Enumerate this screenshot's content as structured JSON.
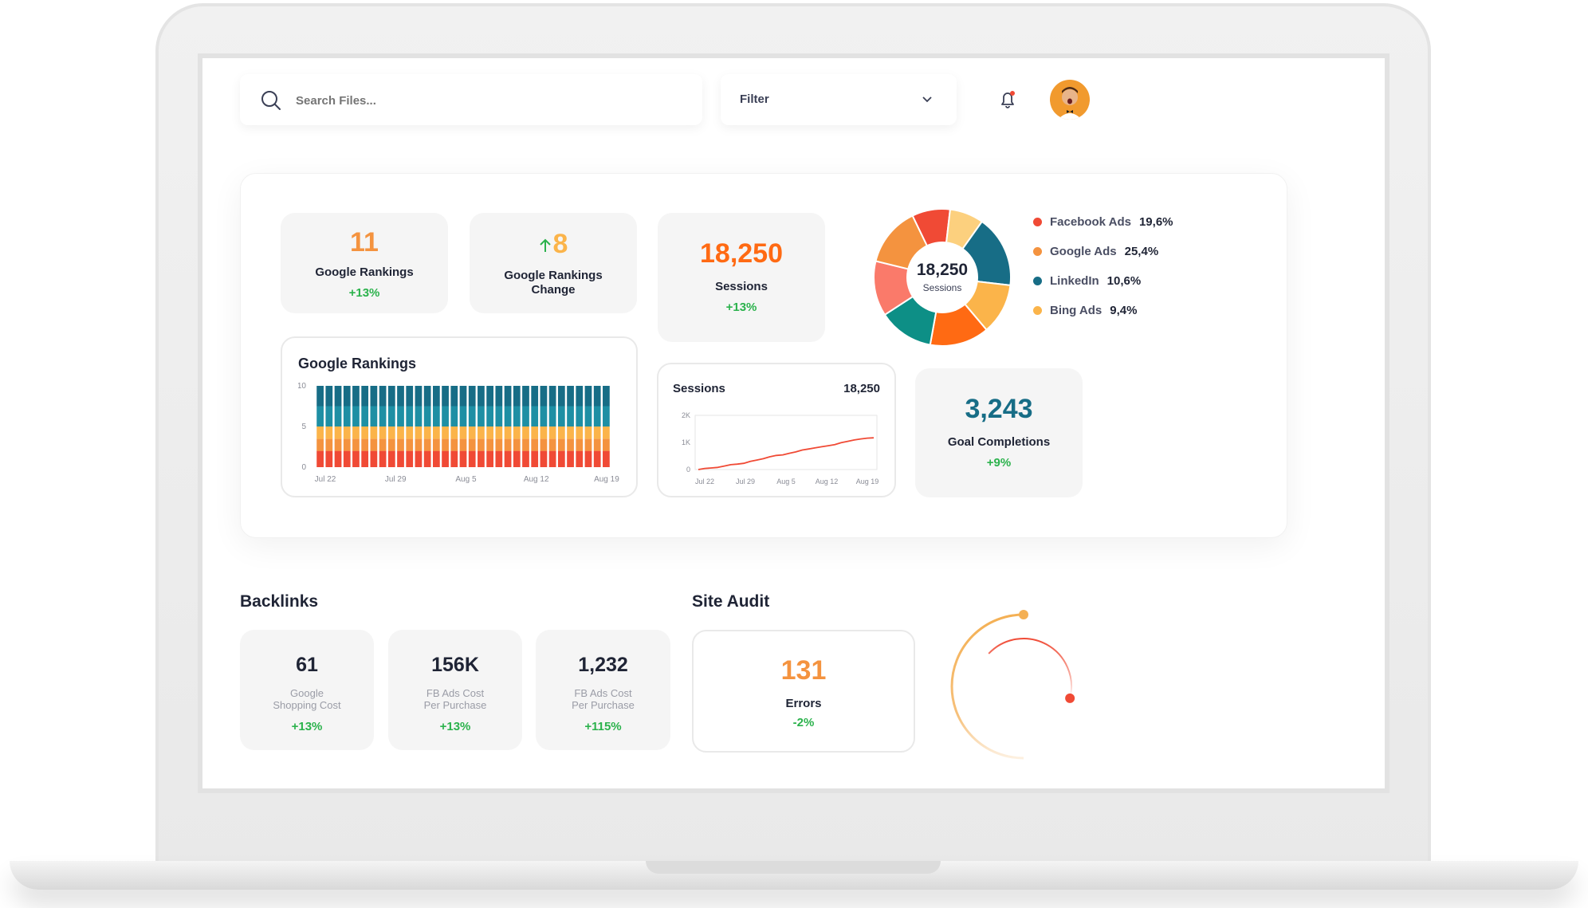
{
  "search": {
    "placeholder": "Search Files..."
  },
  "filter": {
    "label": "Filter"
  },
  "stats": {
    "rankings": {
      "value": "11",
      "label": "Google Rankings",
      "delta": "+13%"
    },
    "rankings_change": {
      "value": "8",
      "label_line1": "Google Rankings",
      "label_line2": "Change"
    },
    "sessions": {
      "value": "18,250",
      "label": "Sessions",
      "delta": "+13%"
    },
    "goal": {
      "value": "3,243",
      "label": "Goal Completions",
      "delta": "+9%"
    }
  },
  "donut": {
    "center_value": "18,250",
    "center_label": "Sessions",
    "legend": [
      {
        "name": "Facebook Ads",
        "value": "19,6%",
        "color": "#f04a35"
      },
      {
        "name": "Google Ads",
        "value": "25,4%",
        "color": "#f4933f"
      },
      {
        "name": "LinkedIn",
        "value": "10,6%",
        "color": "#176d86"
      },
      {
        "name": "Bing Ads",
        "value": "9,4%",
        "color": "#fbb44a"
      }
    ]
  },
  "rankings_chart": {
    "title": "Google Rankings"
  },
  "sessions_chart": {
    "title": "Sessions",
    "total": "18,250"
  },
  "backlinks": {
    "title": "Backlinks",
    "cards": [
      {
        "value": "61",
        "line1": "Google",
        "line2": "Shopping Cost",
        "delta": "+13%"
      },
      {
        "value": "156K",
        "line1": "FB Ads Cost",
        "line2": "Per Purchase",
        "delta": "+13%"
      },
      {
        "value": "1,232",
        "line1": "FB Ads Cost",
        "line2": "Per Purchase",
        "delta": "+115%"
      }
    ]
  },
  "site_audit": {
    "title": "Site Audit",
    "errors_value": "131",
    "errors_label": "Errors",
    "errors_delta": "-2%"
  },
  "colors": {
    "orange": "#f4933f",
    "teal": "#176d86",
    "green": "#2bb24c",
    "red": "#f04a35",
    "yellow": "#fbb44a"
  },
  "chart_data": [
    {
      "type": "bar",
      "title": "Google Rankings",
      "categories": [
        "1",
        "2",
        "3",
        "4",
        "5",
        "6",
        "7",
        "8",
        "9",
        "10",
        "11",
        "12",
        "13",
        "14",
        "15",
        "16",
        "17",
        "18",
        "19",
        "20",
        "21",
        "22",
        "23",
        "24",
        "25",
        "26",
        "27",
        "28",
        "29",
        "30",
        "31",
        "32",
        "33"
      ],
      "x_tick_labels": [
        "Jul 22",
        "Jul 29",
        "Aug 5",
        "Aug 12",
        "Aug 19"
      ],
      "y_ticks": [
        "10",
        "5",
        "0"
      ],
      "ylim": [
        0,
        10
      ],
      "stacked": true,
      "series": [
        {
          "color": "#f04a35",
          "values": [
            2,
            2,
            2,
            2,
            2,
            2,
            2,
            2,
            2,
            2,
            2,
            2,
            2,
            2,
            2,
            2,
            2,
            2,
            2,
            2,
            2,
            2,
            2,
            2,
            2,
            2,
            2,
            2,
            2,
            2,
            2,
            2,
            2
          ]
        },
        {
          "color": "#f4933f",
          "values": [
            1.5,
            1.5,
            1.5,
            1.5,
            1.5,
            1.5,
            1.5,
            1.5,
            1.5,
            1.5,
            1.5,
            1.5,
            1.5,
            1.5,
            1.5,
            1.5,
            1.5,
            1.5,
            1.5,
            1.5,
            1.5,
            1.5,
            1.5,
            1.5,
            1.5,
            1.5,
            1.5,
            1.5,
            1.5,
            1.5,
            1.5,
            1.5,
            1.5
          ]
        },
        {
          "color": "#fbb44a",
          "values": [
            1.5,
            1.5,
            1.5,
            1.5,
            1.5,
            1.5,
            1.5,
            1.5,
            1.5,
            1.5,
            1.5,
            1.5,
            1.5,
            1.5,
            1.5,
            1.5,
            1.5,
            1.5,
            1.5,
            1.5,
            1.5,
            1.5,
            1.5,
            1.5,
            1.5,
            1.5,
            1.5,
            1.5,
            1.5,
            1.5,
            1.5,
            1.5,
            1.5
          ]
        },
        {
          "color": "#1e8fa4",
          "values": [
            2.5,
            2.5,
            2.5,
            2.5,
            2.5,
            2.5,
            2.5,
            2.5,
            2.5,
            2.5,
            2.5,
            2.5,
            2.5,
            2.5,
            2.5,
            2.5,
            2.5,
            2.5,
            2.5,
            2.5,
            2.5,
            2.5,
            2.5,
            2.5,
            2.5,
            2.5,
            2.5,
            2.5,
            2.5,
            2.5,
            2.5,
            2.5,
            2.5
          ]
        },
        {
          "color": "#176d86",
          "values": [
            2.5,
            2.5,
            2.5,
            2.5,
            2.5,
            2.5,
            2.5,
            2.5,
            2.5,
            2.5,
            2.5,
            2.5,
            2.5,
            2.5,
            2.5,
            2.5,
            2.5,
            2.5,
            2.5,
            2.5,
            2.5,
            2.5,
            2.5,
            2.5,
            2.5,
            2.5,
            2.5,
            2.5,
            2.5,
            2.5,
            2.5,
            2.5,
            2.5
          ]
        }
      ]
    },
    {
      "type": "line",
      "title": "Sessions",
      "x_tick_labels": [
        "Jul 22",
        "Jul 29",
        "Aug 5",
        "Aug 12",
        "Aug 19"
      ],
      "y_ticks": [
        "2K",
        "1K",
        "0"
      ],
      "ylim": [
        0,
        2000
      ],
      "values": [
        0,
        40,
        60,
        80,
        130,
        180,
        200,
        230,
        300,
        350,
        400,
        470,
        520,
        540,
        600,
        650,
        720,
        760,
        800,
        840,
        880,
        920,
        990,
        1040,
        1090,
        1130,
        1160,
        1170
      ]
    },
    {
      "type": "pie",
      "slices": [
        {
          "value": 9,
          "color": "#f04a35"
        },
        {
          "value": 8,
          "color": "#fcd07e"
        },
        {
          "value": 17,
          "color": "#176d86"
        },
        {
          "value": 12,
          "color": "#fbb44a"
        },
        {
          "value": 14,
          "color": "#ff6a13"
        },
        {
          "value": 13,
          "color": "#0d8f86"
        },
        {
          "value": 13,
          "color": "#fa7a6a"
        },
        {
          "value": 14,
          "color": "#f4933f"
        }
      ]
    },
    {
      "type": "gauge",
      "rings": [
        {
          "value": 0.5,
          "color": "#f4b054"
        },
        {
          "value": 0.42,
          "color": "#f04a35"
        }
      ]
    }
  ]
}
